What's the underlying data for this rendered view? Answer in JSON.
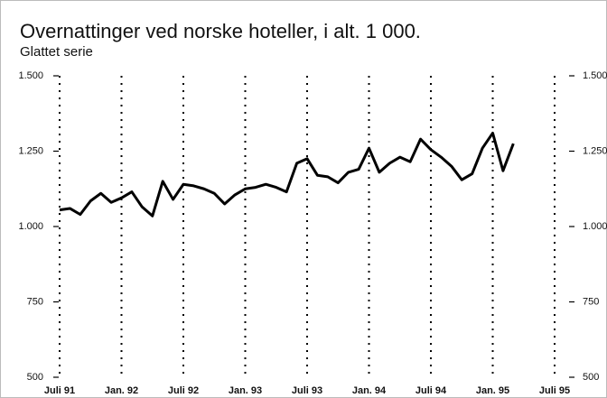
{
  "chart_data": {
    "type": "line",
    "title": "Overnattinger ved norske hoteller, i alt. 1 000.",
    "subtitle": "Glattet serie",
    "categories": [
      "Juli 91",
      null,
      null,
      null,
      null,
      null,
      "Jan. 92",
      null,
      null,
      null,
      null,
      null,
      "Juli 92",
      null,
      null,
      null,
      null,
      null,
      "Jan. 93",
      null,
      null,
      null,
      null,
      null,
      "Juli 93",
      null,
      null,
      null,
      null,
      null,
      "Jan. 94",
      null,
      null,
      null,
      null,
      null,
      "Juli 94",
      null,
      null,
      null,
      null,
      null,
      "Jan. 95",
      null,
      null,
      null,
      null,
      null,
      "Juli 95"
    ],
    "values": [
      1055,
      1060,
      1040,
      1085,
      1110,
      1080,
      1095,
      1115,
      1065,
      1035,
      1150,
      1090,
      1140,
      1135,
      1125,
      1110,
      1075,
      1105,
      1125,
      1130,
      1140,
      1130,
      1115,
      1210,
      1225,
      1170,
      1165,
      1145,
      1180,
      1190,
      1260,
      1180,
      1210,
      1230,
      1215,
      1290,
      1255,
      1230,
      1200,
      1155,
      1175,
      1260,
      1310,
      1185,
      1275,
      null,
      null,
      null,
      null
    ],
    "color": "#000000",
    "ylim": [
      500,
      1500
    ],
    "yticks": [
      500,
      {
        "value": 750,
        "label": "750"
      },
      {
        "value": 1000,
        "label": "1.000"
      },
      {
        "value": 1250,
        "label": "1.250"
      },
      {
        "value": 1500,
        "label": "1.500"
      }
    ]
  }
}
